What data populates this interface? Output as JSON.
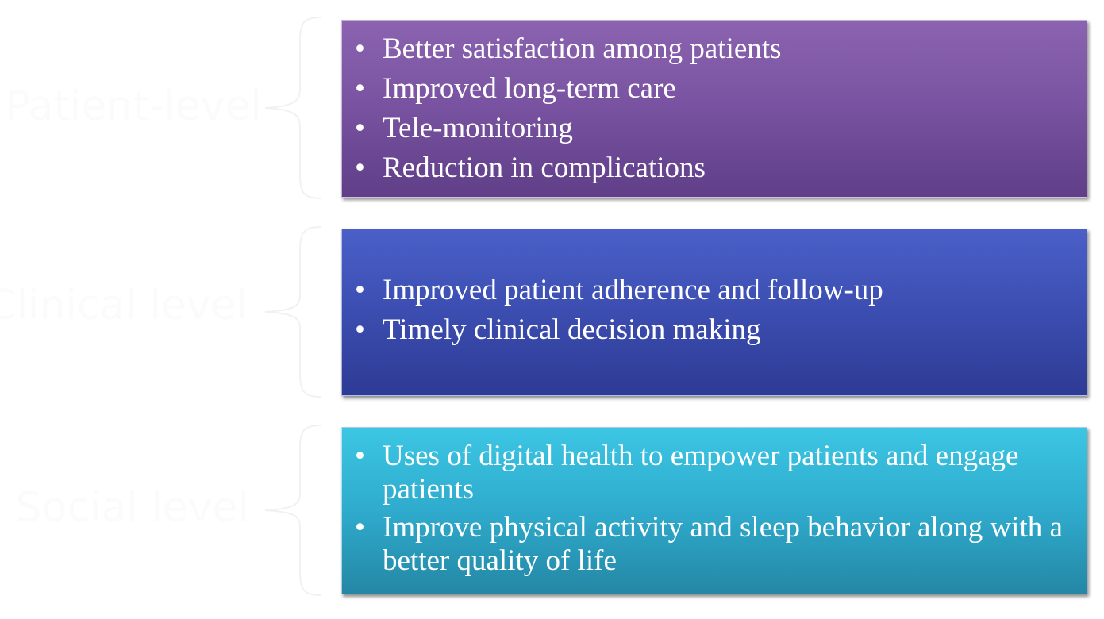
{
  "colors": {
    "patient_box": "#7a54a2",
    "clinical_box": "#3d4fb3",
    "social_box": "#2fabcd",
    "label_text": "#fbfbfb",
    "box_text": "#ffffff"
  },
  "levels": [
    {
      "label": "Patient-level",
      "items": [
        "Better satisfaction among patients",
        "Improved long-term care",
        "Tele-monitoring",
        "Reduction in complications"
      ]
    },
    {
      "label": "Clinical level",
      "items": [
        "Improved patient adherence and follow-up",
        "Timely clinical decision making"
      ]
    },
    {
      "label": "Social level",
      "items": [
        "Uses of digital health to empower patients and engage patients",
        "Improve physical activity and sleep behavior along with a better quality of life"
      ]
    }
  ]
}
